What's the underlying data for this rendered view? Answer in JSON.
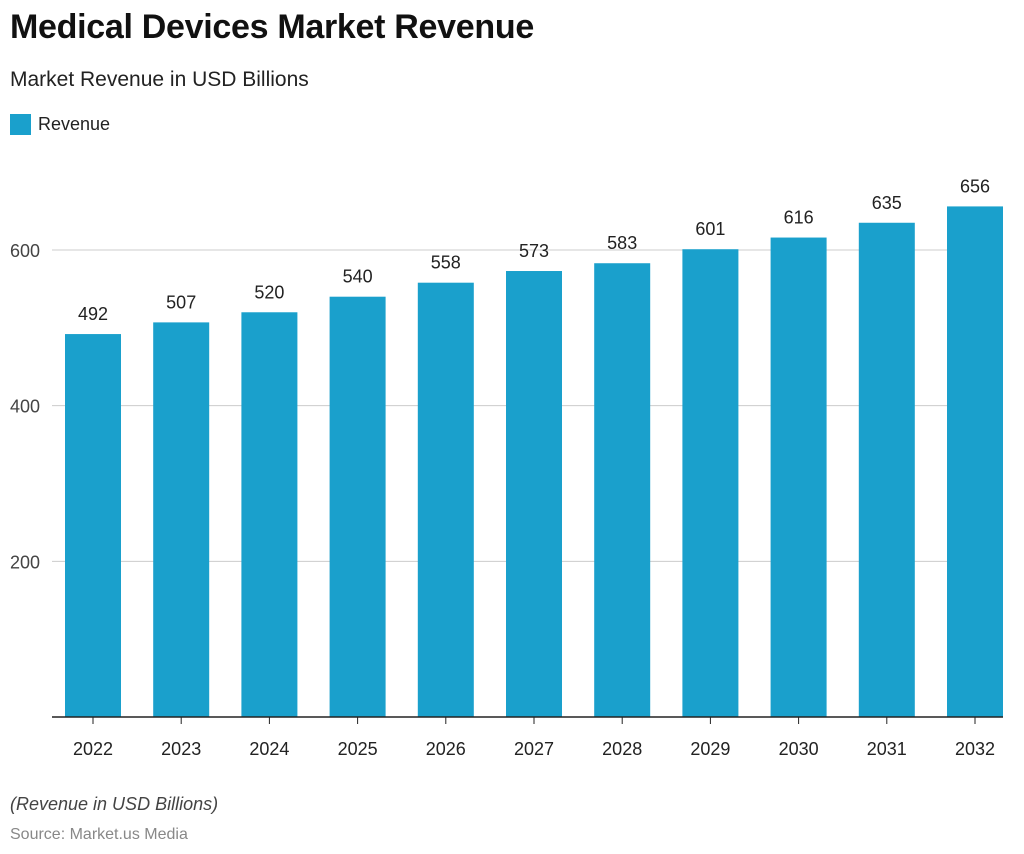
{
  "header": {
    "title": "Medical Devices Market Revenue",
    "subtitle": "Market Revenue in USD Billions"
  },
  "legend": {
    "label": "Revenue",
    "color": "#1aa0cc"
  },
  "footer": {
    "note": "(Revenue in USD Billions)",
    "source": "Source: Market.us Media"
  },
  "chart_data": {
    "type": "bar",
    "categories": [
      "2022",
      "2023",
      "2024",
      "2025",
      "2026",
      "2027",
      "2028",
      "2029",
      "2030",
      "2031",
      "2032"
    ],
    "series": [
      {
        "name": "Revenue",
        "values": [
          492,
          507,
          520,
          540,
          558,
          573,
          583,
          601,
          616,
          635,
          656
        ],
        "color": "#1aa0cc"
      }
    ],
    "title": "Medical Devices Market Revenue",
    "subtitle": "Market Revenue in USD Billions",
    "xlabel": "",
    "ylabel": "",
    "yticks": [
      200,
      400,
      600
    ],
    "ylim": [
      0,
      656
    ],
    "grid": true,
    "legend_position": "top-left",
    "data_labels": true
  }
}
